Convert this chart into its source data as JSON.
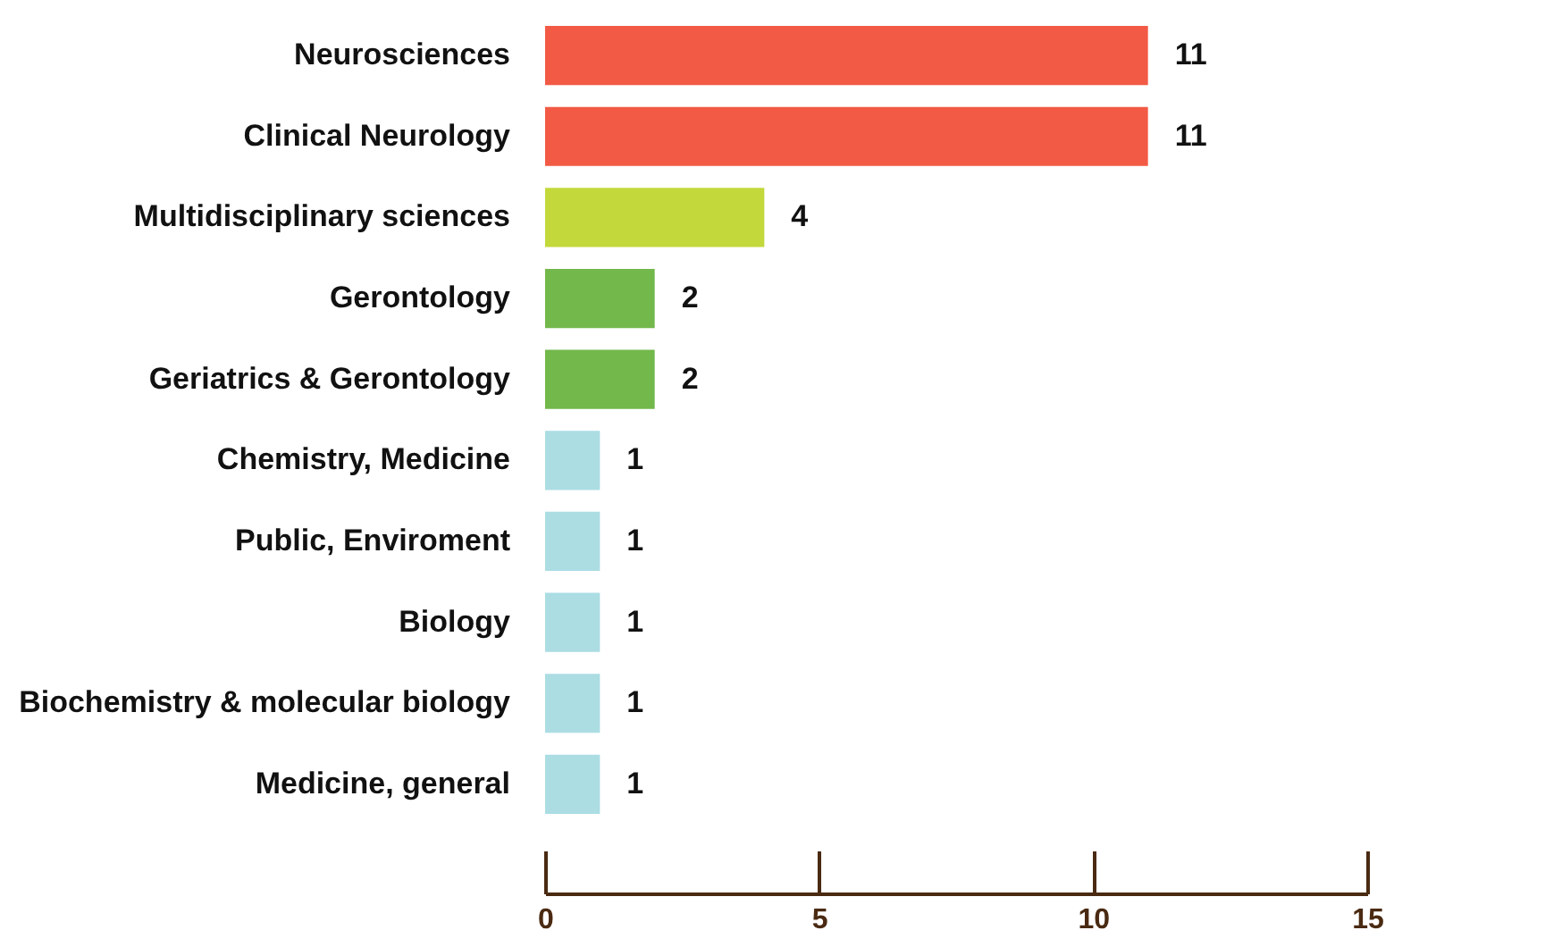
{
  "chart_data": {
    "type": "bar",
    "orientation": "horizontal",
    "categories": [
      "Neurosciences",
      "Clinical Neurology",
      "Multidisciplinary sciences",
      "Gerontology",
      "Geriatrics & Gerontology",
      "Chemistry, Medicine",
      "Public, Enviroment",
      "Biology",
      "Biochemistry & molecular biology",
      "Medicine, general"
    ],
    "values": [
      11,
      11,
      4,
      2,
      2,
      1,
      1,
      1,
      1,
      1
    ],
    "colors": [
      "#f25a45",
      "#f25a45",
      "#c3d83b",
      "#72b84b",
      "#72b84b",
      "#abdde3",
      "#abdde3",
      "#abdde3",
      "#abdde3",
      "#abdde3"
    ],
    "xlim": [
      0,
      15
    ],
    "xticks": [
      0,
      5,
      10,
      15
    ],
    "data_labels": true,
    "grid": false
  }
}
